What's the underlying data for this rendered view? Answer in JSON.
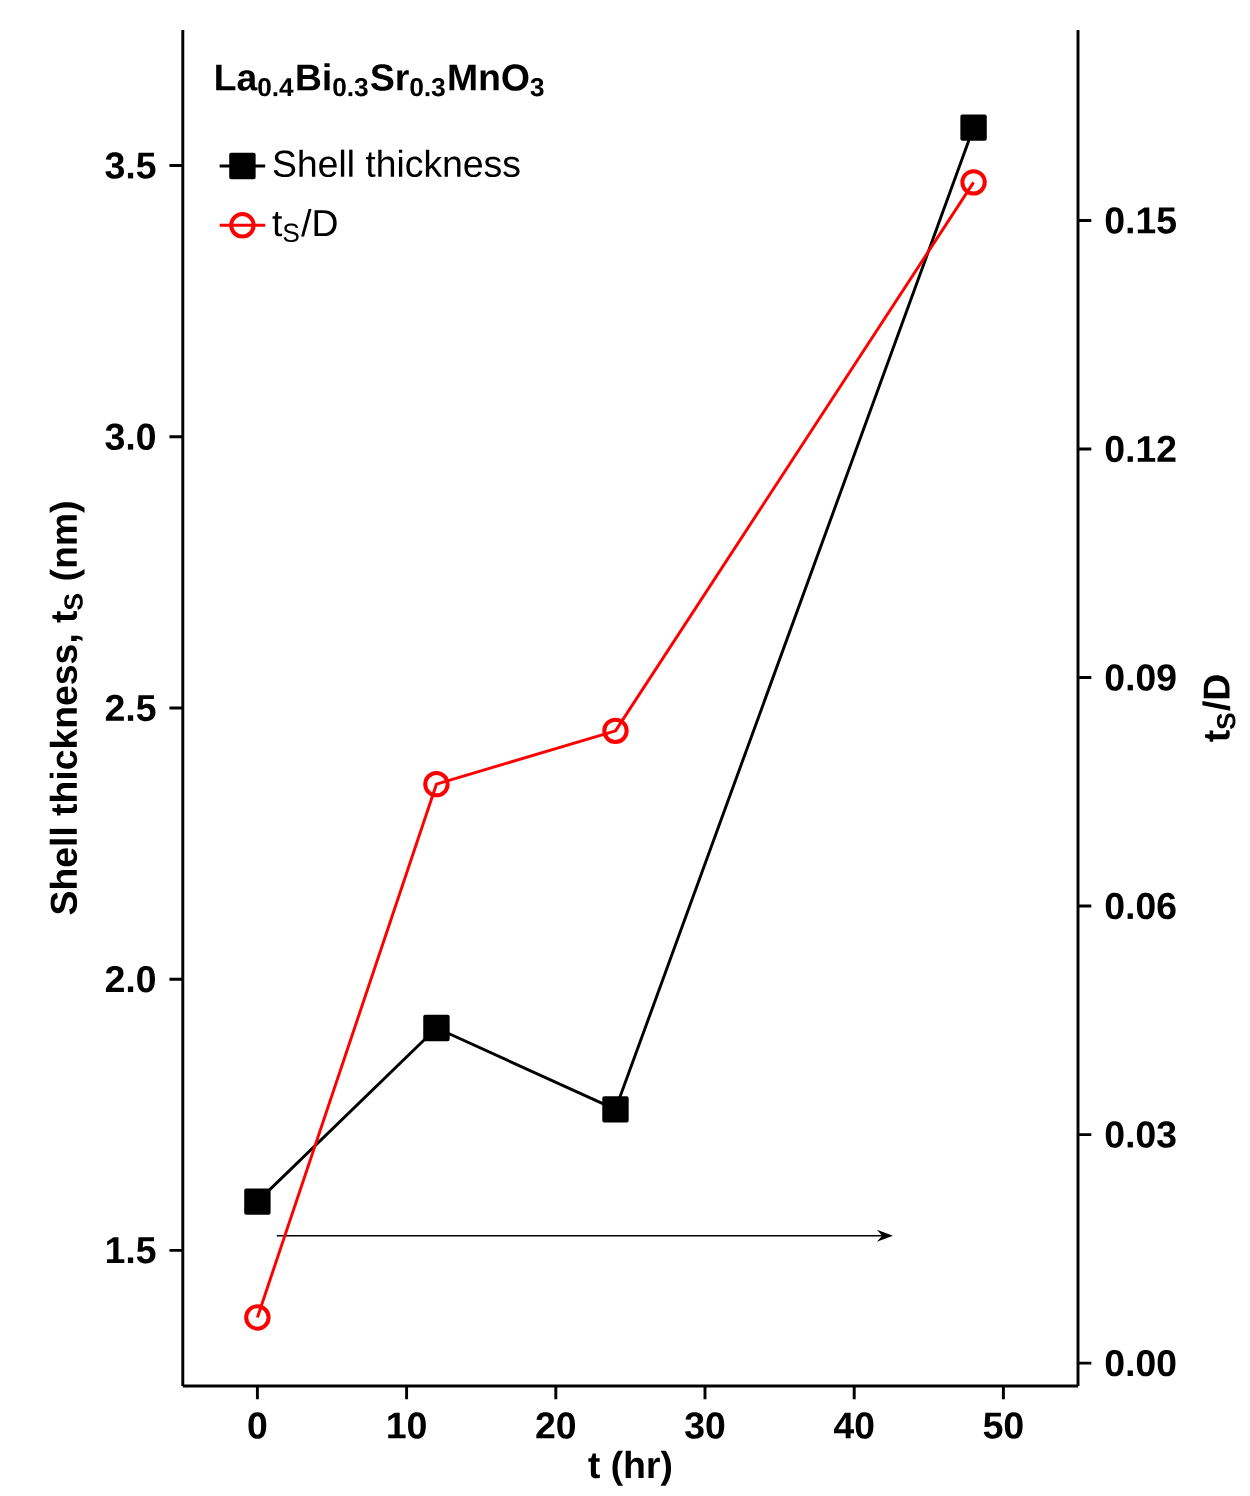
{
  "chart_data": {
    "type": "line",
    "title": "La$_{0.4}$Bi$_{0.3}$Sr$_{0.3}$MnO$_{3}$",
    "xlabel": "t (hr)",
    "ylabel": "Shell thickness, t$_{S}$ (nm)",
    "y2label": "t$_{S}$/D",
    "x": [
      0,
      12,
      24,
      48
    ],
    "series": [
      {
        "name": "Shell thickness",
        "color": "#000000",
        "marker": "square",
        "values": [
          1.59,
          1.91,
          1.76,
          3.57
        ]
      },
      {
        "name": "t$_{S}$/D",
        "color": "#ff0000",
        "marker": "circle",
        "axis": "y2",
        "values": [
          0.006,
          0.076,
          0.083,
          0.155
        ]
      }
    ],
    "xlim": [
      -5,
      55
    ],
    "xticks": [
      0,
      10,
      20,
      30,
      40,
      50
    ],
    "ylim": [
      1.25,
      3.75
    ],
    "yticks": [
      1.5,
      {
        "value": 2,
        "label": "2.0"
      },
      2.5,
      {
        "value": 3,
        "label": "3.0"
      },
      3.5
    ],
    "y2lim": [
      -0.003,
      0.175
    ],
    "y2ticks": [
      {
        "value": 0,
        "label": "0.00"
      },
      {
        "value": 0.03,
        "label": "0.03"
      },
      {
        "value": 0.06,
        "label": "0.06"
      },
      {
        "value": 0.09,
        "label": "0.09"
      },
      {
        "value": 0.12,
        "label": "0.12"
      },
      {
        "value": 0.15,
        "label": "0.15"
      }
    ],
    "grid": false,
    "legend": "top left",
    "line_style": "solid"
  }
}
